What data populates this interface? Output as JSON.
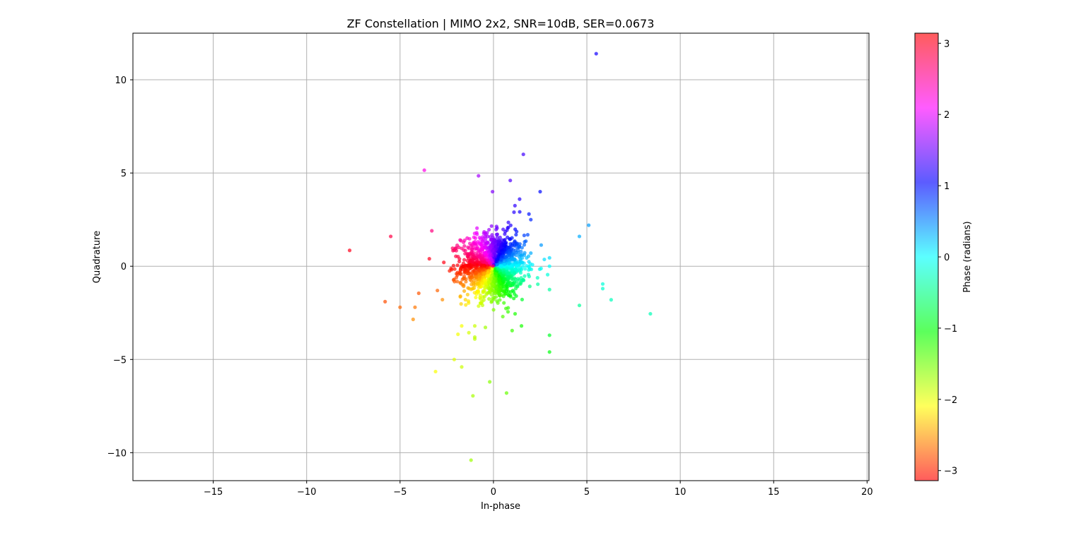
{
  "chart_data": {
    "type": "scatter",
    "title": "ZF Constellation | MIMO 2x2, SNR=10dB, SER=0.0673",
    "xlabel": "In-phase",
    "ylabel": "Quadrature",
    "xlim": [
      -19.3,
      20.1
    ],
    "ylim": [
      -11.5,
      12.5
    ],
    "xticks": [
      -15,
      -10,
      -5,
      0,
      5,
      10,
      15,
      20
    ],
    "xtick_labels": [
      "−15",
      "−10",
      "−5",
      "0",
      "5",
      "10",
      "15",
      "20"
    ],
    "yticks": [
      -10,
      -5,
      0,
      5,
      10
    ],
    "ytick_labels": [
      "−10",
      "−5",
      "0",
      "5",
      "10"
    ],
    "grid": true,
    "colorbar": {
      "label": "Phase (radians)",
      "colormap": "hsv",
      "range": [
        -3.14159,
        3.14159
      ],
      "ticks": [
        -3,
        -2,
        -1,
        0,
        1,
        2,
        3
      ],
      "tick_labels": [
        "−3",
        "−2",
        "−1",
        "0",
        "1",
        "2",
        "3"
      ]
    },
    "marker_color_by": "phase",
    "cluster": {
      "description_values": "dense symbol cloud centred at origin",
      "center": [
        0,
        0
      ],
      "std_x": 0.85,
      "std_y": 0.85,
      "count": 1400
    },
    "outlier_points": [
      {
        "x": 5.5,
        "y": 11.4
      },
      {
        "x": 1.6,
        "y": 6.0
      },
      {
        "x": -3.7,
        "y": 5.15
      },
      {
        "x": -0.8,
        "y": 4.85
      },
      {
        "x": 0.9,
        "y": 4.6
      },
      {
        "x": 2.5,
        "y": 4.0
      },
      {
        "x": -0.05,
        "y": 4.0
      },
      {
        "x": 1.4,
        "y": 3.6
      },
      {
        "x": 1.15,
        "y": 3.25
      },
      {
        "x": 1.9,
        "y": 2.8
      },
      {
        "x": 2.0,
        "y": 2.5
      },
      {
        "x": 0.8,
        "y": 2.35
      },
      {
        "x": 1.1,
        "y": 2.9
      },
      {
        "x": -3.3,
        "y": 1.9
      },
      {
        "x": -5.5,
        "y": 1.6
      },
      {
        "x": -7.7,
        "y": 0.85
      },
      {
        "x": 5.1,
        "y": 2.2
      },
      {
        "x": 4.6,
        "y": 1.6
      },
      {
        "x": 3.0,
        "y": 0.45
      },
      {
        "x": 3.0,
        "y": 0.0
      },
      {
        "x": 2.9,
        "y": -0.45
      },
      {
        "x": 3.0,
        "y": -1.25
      },
      {
        "x": 5.85,
        "y": -0.95
      },
      {
        "x": 5.85,
        "y": -1.2
      },
      {
        "x": 6.3,
        "y": -1.8
      },
      {
        "x": 4.6,
        "y": -2.1
      },
      {
        "x": 8.4,
        "y": -2.55
      },
      {
        "x": -5.8,
        "y": -1.9
      },
      {
        "x": -5.0,
        "y": -2.2
      },
      {
        "x": -4.2,
        "y": -2.2
      },
      {
        "x": -4.3,
        "y": -2.85
      },
      {
        "x": -4.0,
        "y": -1.45
      },
      {
        "x": -3.0,
        "y": -1.3
      },
      {
        "x": -1.7,
        "y": -3.2
      },
      {
        "x": -1.9,
        "y": -3.65
      },
      {
        "x": -1.0,
        "y": -3.2
      },
      {
        "x": -1.0,
        "y": -3.8
      },
      {
        "x": -1.0,
        "y": -3.9
      },
      {
        "x": 1.5,
        "y": -3.2
      },
      {
        "x": 1.0,
        "y": -3.45
      },
      {
        "x": 0.5,
        "y": -2.7
      },
      {
        "x": 3.0,
        "y": -3.7
      },
      {
        "x": 3.0,
        "y": -4.6
      },
      {
        "x": -2.1,
        "y": -5.0
      },
      {
        "x": -1.7,
        "y": -5.4
      },
      {
        "x": -3.1,
        "y": -5.65
      },
      {
        "x": -0.2,
        "y": -6.2
      },
      {
        "x": 0.7,
        "y": -6.8
      },
      {
        "x": -1.1,
        "y": -6.95
      },
      {
        "x": -1.2,
        "y": -10.4
      }
    ]
  }
}
